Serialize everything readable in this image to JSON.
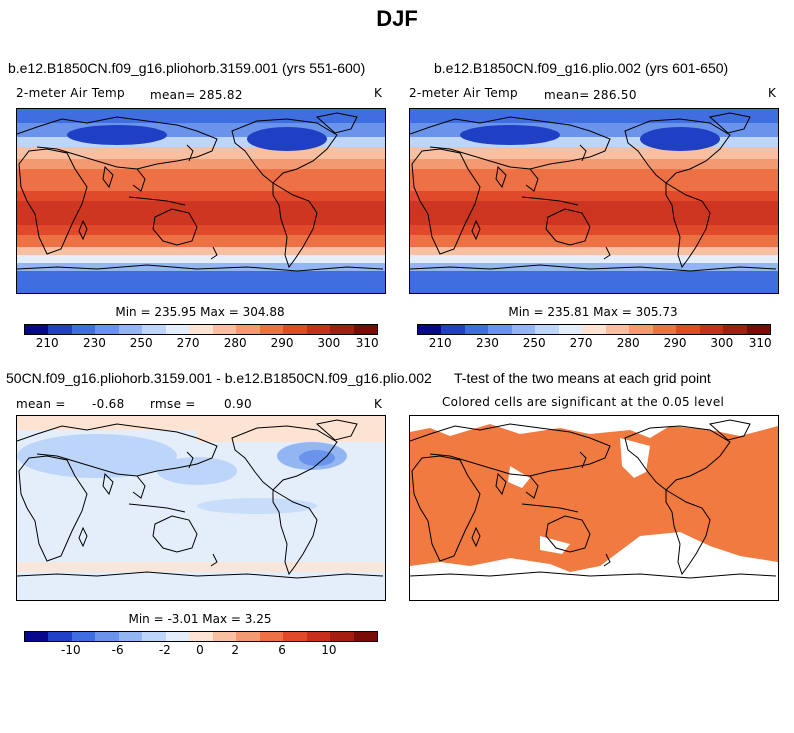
{
  "figure": {
    "title": "DJF"
  },
  "panels": [
    {
      "title": "b.e12.B1850CN.f09_g16.pliohorb.3159.001 (yrs 551-600)",
      "variable": "2-meter Air Temp",
      "mean_label": "mean=",
      "mean_value": "285.82",
      "units": "K",
      "stats": "Min = 235.95 Max = 304.88"
    },
    {
      "title": "b.e12.B1850CN.f09_g16.plio.002 (yrs 601-650)",
      "variable": "2-meter Air Temp",
      "mean_label": "mean=",
      "mean_value": "286.50",
      "units": "K",
      "stats": "Min = 235.81 Max = 305.73"
    },
    {
      "title": "50CN.f09_g16.pliohorb.3159.001 - b.e12.B1850CN.f09_g16.plio.002",
      "mean_label": "mean =",
      "mean_value": "-0.68",
      "rmse_label": "rmse =",
      "rmse_value": "0.90",
      "units": "K",
      "stats": "Min =  -3.01 Max =   3.25"
    },
    {
      "title": "T-test of the two means at each grid point",
      "subtitle": "Colored cells are significant at the 0.05 level"
    }
  ],
  "colorbar_abs": {
    "colors": [
      "#08088c",
      "#1f3fc4",
      "#3f6ee0",
      "#6a94ec",
      "#93b6f3",
      "#bcd5f8",
      "#e4eefb",
      "#fde3d2",
      "#f8c0a0",
      "#f49a72",
      "#ee7045",
      "#e0492a",
      "#c52f1c",
      "#a11e10",
      "#780c06"
    ],
    "ticks": [
      "210",
      "230",
      "250",
      "270",
      "280",
      "290",
      "300",
      "310"
    ]
  },
  "colorbar_diff": {
    "colors": [
      "#08088c",
      "#1f3fc4",
      "#3f6ee0",
      "#6a94ec",
      "#93b6f3",
      "#bcd5f8",
      "#e4eefb",
      "#fde3d2",
      "#f8c0a0",
      "#f49a72",
      "#ee7045",
      "#e0492a",
      "#c52f1c",
      "#a11e10",
      "#780c06"
    ],
    "ticks": [
      "-10",
      "-6",
      "-2",
      "0",
      "2",
      "6",
      "10"
    ]
  }
}
